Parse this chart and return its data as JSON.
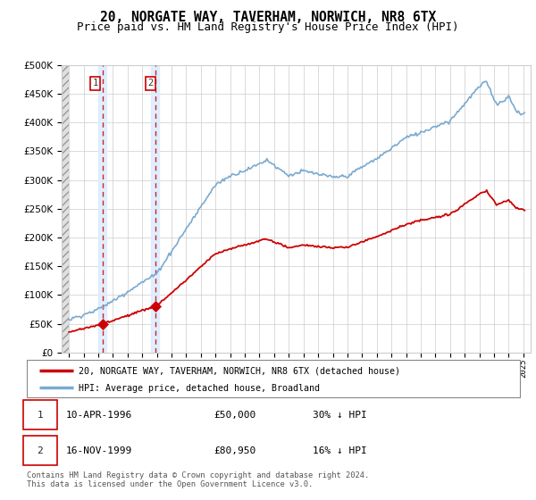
{
  "title": "20, NORGATE WAY, TAVERHAM, NORWICH, NR8 6TX",
  "subtitle": "Price paid vs. HM Land Registry's House Price Index (HPI)",
  "legend_line1": "20, NORGATE WAY, TAVERHAM, NORWICH, NR8 6TX (detached house)",
  "legend_line2": "HPI: Average price, detached house, Broadland",
  "footnote": "Contains HM Land Registry data © Crown copyright and database right 2024.\nThis data is licensed under the Open Government Licence v3.0.",
  "table": [
    {
      "num": 1,
      "date": "10-APR-1996",
      "price": "£50,000",
      "change": "30% ↓ HPI"
    },
    {
      "num": 2,
      "date": "16-NOV-1999",
      "price": "£80,950",
      "change": "16% ↓ HPI"
    }
  ],
  "sale1_year": 1996.28,
  "sale1_price": 50000,
  "sale2_year": 1999.88,
  "sale2_price": 80950,
  "price_color": "#cc0000",
  "hpi_color": "#7aaad0",
  "shade_color": "#ddeeff",
  "ylim": [
    0,
    500000
  ],
  "yticks": [
    0,
    50000,
    100000,
    150000,
    200000,
    250000,
    300000,
    350000,
    400000,
    450000,
    500000
  ],
  "xmin": 1993.5,
  "xmax": 2025.5,
  "title_fontsize": 11,
  "subtitle_fontsize": 10
}
